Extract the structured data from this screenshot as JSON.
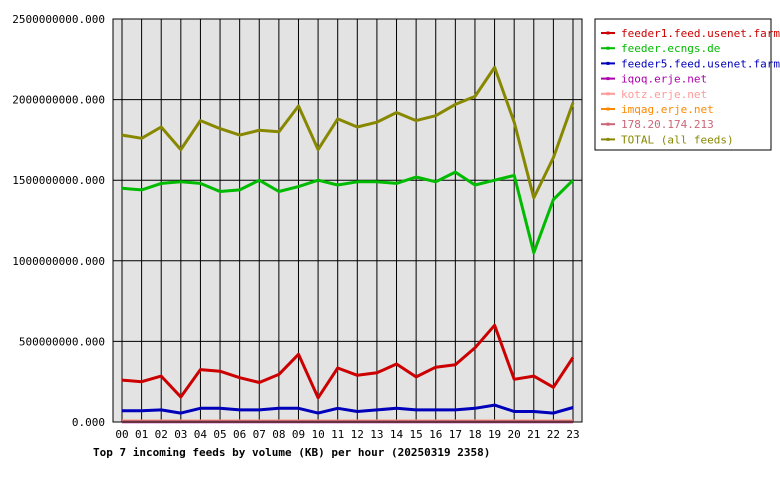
{
  "chart_data": {
    "type": "line",
    "title": "Top 7 incoming feeds by volume (KB) per hour (20250319 2358)",
    "categories": [
      "00",
      "01",
      "02",
      "03",
      "04",
      "05",
      "06",
      "07",
      "08",
      "09",
      "10",
      "11",
      "12",
      "13",
      "14",
      "15",
      "16",
      "17",
      "18",
      "19",
      "20",
      "21",
      "22",
      "23"
    ],
    "ylim": [
      0,
      2500000000
    ],
    "yticks": [
      0,
      500000000,
      1000000000,
      1500000000,
      2000000000,
      2500000000
    ],
    "ytick_labels": [
      "0.000",
      "500000000.000",
      "1000000000.000",
      "1500000000.000",
      "2000000000.000",
      "2500000000.000"
    ],
    "grid": true,
    "legend_position": "right",
    "series": [
      {
        "name": "feeder1.feed.usenet.farm",
        "color": "#cc0000",
        "values": [
          260000000,
          250000000,
          285000000,
          155000000,
          325000000,
          315000000,
          275000000,
          245000000,
          295000000,
          420000000,
          150000000,
          335000000,
          290000000,
          305000000,
          360000000,
          280000000,
          340000000,
          355000000,
          460000000,
          600000000,
          265000000,
          285000000,
          215000000,
          400000000
        ]
      },
      {
        "name": "feeder.ecngs.de",
        "color": "#00bb00",
        "values": [
          1450000000,
          1440000000,
          1480000000,
          1490000000,
          1480000000,
          1430000000,
          1440000000,
          1500000000,
          1430000000,
          1460000000,
          1500000000,
          1470000000,
          1490000000,
          1490000000,
          1480000000,
          1520000000,
          1490000000,
          1550000000,
          1470000000,
          1500000000,
          1530000000,
          1050000000,
          1380000000,
          1500000000
        ]
      },
      {
        "name": "feeder5.feed.usenet.farm",
        "color": "#0000bb",
        "values": [
          70000000,
          70000000,
          75000000,
          55000000,
          85000000,
          85000000,
          75000000,
          75000000,
          85000000,
          85000000,
          55000000,
          85000000,
          65000000,
          75000000,
          85000000,
          75000000,
          75000000,
          75000000,
          85000000,
          105000000,
          65000000,
          65000000,
          55000000,
          90000000
        ]
      },
      {
        "name": "iqoq.erje.net",
        "color": "#aa00aa",
        "values": [
          2000000,
          2000000,
          2000000,
          2000000,
          2000000,
          2000000,
          2000000,
          2000000,
          2000000,
          2000000,
          2000000,
          2000000,
          2000000,
          2000000,
          2000000,
          2000000,
          2000000,
          2000000,
          2000000,
          2000000,
          2000000,
          2000000,
          2000000,
          2000000
        ]
      },
      {
        "name": "kotz.erje.net",
        "color": "#ff9999",
        "values": [
          6000000,
          6000000,
          6000000,
          6000000,
          6000000,
          6000000,
          6000000,
          6000000,
          6000000,
          6000000,
          6000000,
          6000000,
          6000000,
          6000000,
          6000000,
          6000000,
          6000000,
          6000000,
          6000000,
          6000000,
          6000000,
          6000000,
          6000000,
          6000000
        ]
      },
      {
        "name": "imqag.erje.net",
        "color": "#ff8800",
        "values": [
          4000000,
          4000000,
          4000000,
          4000000,
          4000000,
          4000000,
          4000000,
          4000000,
          4000000,
          4000000,
          4000000,
          4000000,
          4000000,
          4000000,
          4000000,
          4000000,
          4000000,
          4000000,
          4000000,
          4000000,
          4000000,
          4000000,
          4000000,
          4000000
        ]
      },
      {
        "name": "178.20.174.213",
        "color": "#cc6677",
        "values": [
          3000000,
          3000000,
          3000000,
          3000000,
          3000000,
          3000000,
          3000000,
          3000000,
          3000000,
          3000000,
          3000000,
          3000000,
          3000000,
          3000000,
          3000000,
          3000000,
          3000000,
          3000000,
          3000000,
          3000000,
          3000000,
          3000000,
          3000000,
          3000000
        ]
      },
      {
        "name": "TOTAL (all feeds)",
        "color": "#888800",
        "values": [
          1780000000,
          1760000000,
          1830000000,
          1690000000,
          1870000000,
          1820000000,
          1780000000,
          1810000000,
          1800000000,
          1960000000,
          1690000000,
          1880000000,
          1830000000,
          1860000000,
          1920000000,
          1870000000,
          1900000000,
          1970000000,
          2020000000,
          2200000000,
          1860000000,
          1390000000,
          1640000000,
          1980000000
        ]
      }
    ]
  }
}
